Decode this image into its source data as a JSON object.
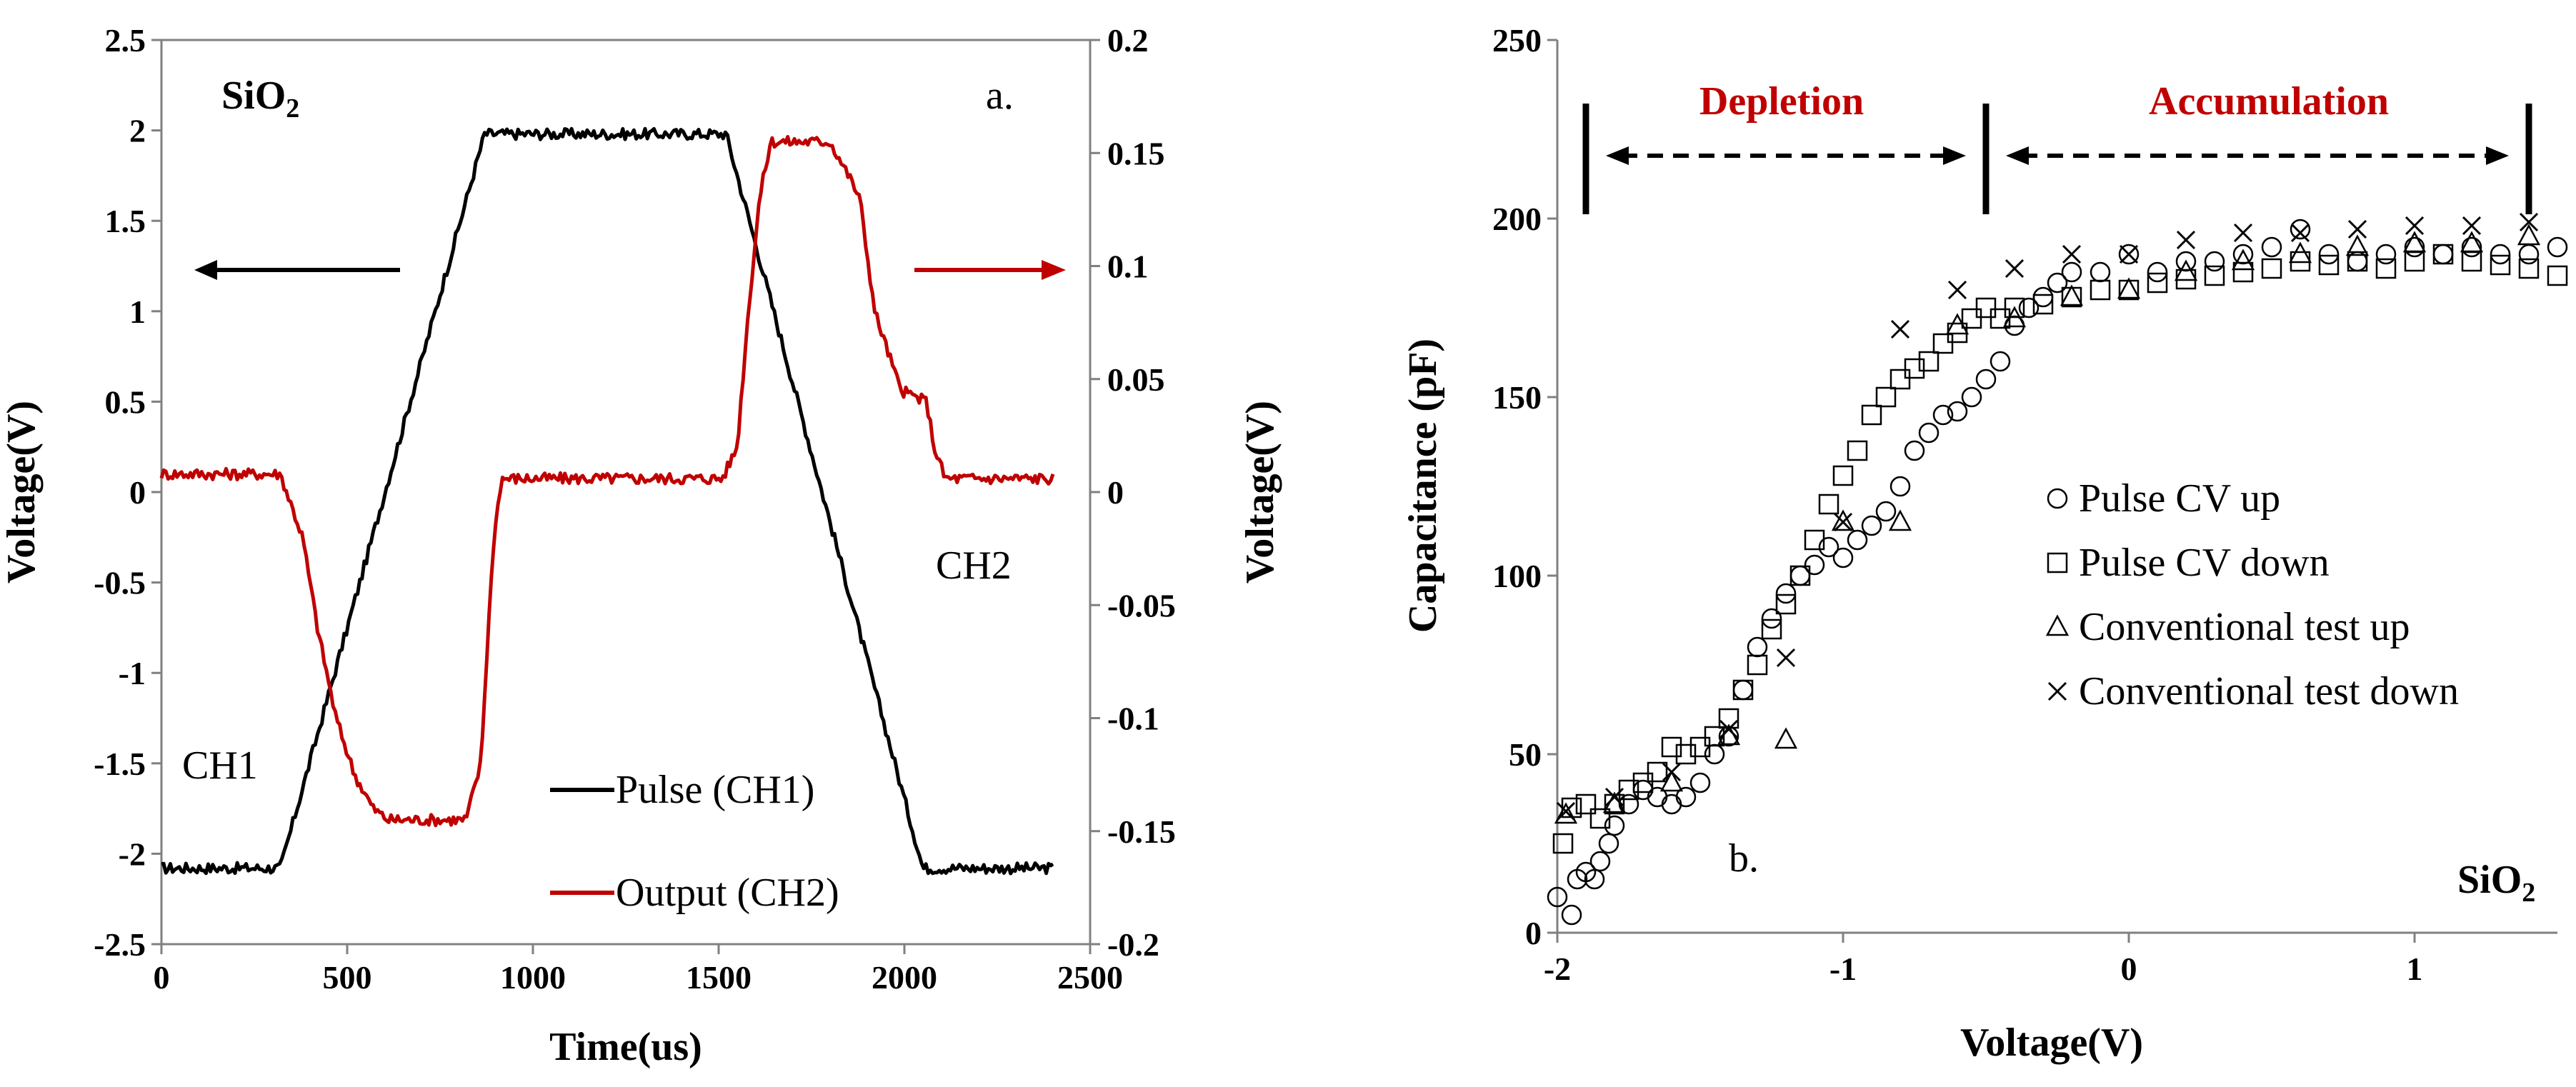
{
  "chart_data": [
    {
      "type": "line",
      "panel_label": "a.",
      "material_label": {
        "base": "SiO",
        "sub": "2"
      },
      "xlabel": "Time(us)",
      "ylabel": "Voltage(V)",
      "y2label": "Voltage(V)",
      "xlim": [
        0,
        2500
      ],
      "ylim": [
        -2.5,
        2.5
      ],
      "y2lim": [
        -0.2,
        0.2
      ],
      "x_ticks": [
        "0",
        "500",
        "1000",
        "1500",
        "2000",
        "2500"
      ],
      "y_ticks": [
        "-2.5",
        "-2",
        "-1.5",
        "-1",
        "-0.5",
        "0",
        "0.5",
        "1",
        "1.5",
        "2",
        "2.5"
      ],
      "y2_ticks": [
        "-0.2",
        "-0.15",
        "-0.1",
        "-0.05",
        "0",
        "0.05",
        "0.1",
        "0.15",
        "0.2"
      ],
      "channel_labels": [
        "CH1",
        "CH2"
      ],
      "legend": [
        "Pulse (CH1)",
        "Output (CH2)"
      ],
      "colors": {
        "ch1": "#000000",
        "ch2": "#C00000"
      },
      "series": [
        {
          "name": "Pulse (CH1)",
          "axis": "left",
          "points": [
            [
              0,
              -2.08
            ],
            [
              320,
              -2.08
            ],
            [
              870,
              1.98
            ],
            [
              1520,
              1.98
            ],
            [
              2050,
              -2.08
            ],
            [
              2400,
              -2.08
            ]
          ]
        },
        {
          "name": "Output (CH2)",
          "axis": "right",
          "points": [
            [
              0,
              0.008
            ],
            [
              320,
              0.008
            ],
            [
              380,
              -0.02
            ],
            [
              420,
              -0.06
            ],
            [
              470,
              -0.1
            ],
            [
              520,
              -0.125
            ],
            [
              570,
              -0.14
            ],
            [
              610,
              -0.145
            ],
            [
              820,
              -0.145
            ],
            [
              860,
              -0.12
            ],
            [
              880,
              -0.06
            ],
            [
              895,
              -0.02
            ],
            [
              915,
              0.006
            ],
            [
              1510,
              0.006
            ],
            [
              1550,
              0.02
            ],
            [
              1580,
              0.08
            ],
            [
              1610,
              0.13
            ],
            [
              1640,
              0.155
            ],
            [
              1800,
              0.155
            ],
            [
              1850,
              0.14
            ],
            [
              1880,
              0.13
            ],
            [
              1920,
              0.08
            ],
            [
              1960,
              0.06
            ],
            [
              1990,
              0.045
            ],
            [
              2060,
              0.04
            ],
            [
              2080,
              0.02
            ],
            [
              2110,
              0.006
            ],
            [
              2400,
              0.006
            ]
          ]
        }
      ]
    },
    {
      "type": "scatter",
      "panel_label": "b.",
      "material_label": {
        "base": "SiO",
        "sub": "2"
      },
      "xlabel": "Voltage(V)",
      "ylabel": "Capacitance (pF)",
      "xlim": [
        -2,
        1.5
      ],
      "ylim": [
        0,
        250
      ],
      "x_ticks": [
        "-2",
        "-1",
        "0",
        "1"
      ],
      "y_ticks": [
        "0",
        "50",
        "100",
        "150",
        "200",
        "250"
      ],
      "region_labels": [
        "Depletion",
        "Accumulation"
      ],
      "region_markers_x": [
        -1.9,
        -0.5,
        1.4
      ],
      "legend": [
        "Pulse CV up",
        "Pulse CV down",
        "Conventional test up",
        "Conventional test down"
      ],
      "series": [
        {
          "name": "Pulse CV up",
          "marker": "circle",
          "points": [
            [
              -2.0,
              10
            ],
            [
              -1.95,
              5
            ],
            [
              -1.93,
              15
            ],
            [
              -1.9,
              17
            ],
            [
              -1.87,
              15
            ],
            [
              -1.85,
              20
            ],
            [
              -1.82,
              25
            ],
            [
              -1.8,
              30
            ],
            [
              -1.75,
              36
            ],
            [
              -1.7,
              40
            ],
            [
              -1.65,
              38
            ],
            [
              -1.6,
              36
            ],
            [
              -1.55,
              38
            ],
            [
              -1.5,
              42
            ],
            [
              -1.45,
              50
            ],
            [
              -1.4,
              55
            ],
            [
              -1.35,
              68
            ],
            [
              -1.3,
              80
            ],
            [
              -1.25,
              88
            ],
            [
              -1.2,
              95
            ],
            [
              -1.15,
              100
            ],
            [
              -1.1,
              103
            ],
            [
              -1.05,
              108
            ],
            [
              -1.0,
              105
            ],
            [
              -0.95,
              110
            ],
            [
              -0.9,
              114
            ],
            [
              -0.85,
              118
            ],
            [
              -0.8,
              125
            ],
            [
              -0.75,
              135
            ],
            [
              -0.7,
              140
            ],
            [
              -0.65,
              145
            ],
            [
              -0.6,
              146
            ],
            [
              -0.55,
              150
            ],
            [
              -0.5,
              155
            ],
            [
              -0.45,
              160
            ],
            [
              -0.4,
              170
            ],
            [
              -0.35,
              175
            ],
            [
              -0.3,
              178
            ],
            [
              -0.25,
              182
            ],
            [
              -0.2,
              185
            ],
            [
              -0.1,
              185
            ],
            [
              0.0,
              190
            ],
            [
              0.1,
              185
            ],
            [
              0.2,
              188
            ],
            [
              0.3,
              188
            ],
            [
              0.4,
              190
            ],
            [
              0.5,
              192
            ],
            [
              0.6,
              197
            ],
            [
              0.7,
              190
            ],
            [
              0.8,
              188
            ],
            [
              0.9,
              190
            ],
            [
              1.0,
              192
            ],
            [
              1.1,
              190
            ],
            [
              1.2,
              192
            ],
            [
              1.3,
              190
            ],
            [
              1.4,
              190
            ],
            [
              1.5,
              192
            ]
          ]
        },
        {
          "name": "Pulse CV down",
          "marker": "square",
          "points": [
            [
              -1.98,
              25
            ],
            [
              -1.95,
              35
            ],
            [
              -1.9,
              36
            ],
            [
              -1.85,
              32
            ],
            [
              -1.8,
              36
            ],
            [
              -1.75,
              40
            ],
            [
              -1.7,
              42
            ],
            [
              -1.65,
              45
            ],
            [
              -1.6,
              52
            ],
            [
              -1.55,
              50
            ],
            [
              -1.5,
              52
            ],
            [
              -1.45,
              55
            ],
            [
              -1.4,
              60
            ],
            [
              -1.35,
              68
            ],
            [
              -1.3,
              75
            ],
            [
              -1.25,
              85
            ],
            [
              -1.2,
              92
            ],
            [
              -1.15,
              100
            ],
            [
              -1.1,
              110
            ],
            [
              -1.05,
              120
            ],
            [
              -1.0,
              128
            ],
            [
              -0.95,
              135
            ],
            [
              -0.9,
              145
            ],
            [
              -0.85,
              150
            ],
            [
              -0.8,
              155
            ],
            [
              -0.75,
              158
            ],
            [
              -0.7,
              160
            ],
            [
              -0.65,
              165
            ],
            [
              -0.6,
              168
            ],
            [
              -0.55,
              172
            ],
            [
              -0.5,
              175
            ],
            [
              -0.45,
              172
            ],
            [
              -0.4,
              175
            ],
            [
              -0.3,
              176
            ],
            [
              -0.2,
              178
            ],
            [
              -0.1,
              180
            ],
            [
              0.0,
              180
            ],
            [
              0.1,
              182
            ],
            [
              0.2,
              183
            ],
            [
              0.3,
              184
            ],
            [
              0.4,
              185
            ],
            [
              0.5,
              186
            ],
            [
              0.6,
              188
            ],
            [
              0.7,
              187
            ],
            [
              0.8,
              188
            ],
            [
              0.9,
              186
            ],
            [
              1.0,
              188
            ],
            [
              1.1,
              190
            ],
            [
              1.2,
              188
            ],
            [
              1.3,
              187
            ],
            [
              1.4,
              186
            ],
            [
              1.5,
              184
            ]
          ]
        },
        {
          "name": "Conventional test up",
          "marker": "triangle",
          "points": [
            [
              -1.97,
              33
            ],
            [
              -1.8,
              36
            ],
            [
              -1.6,
              42
            ],
            [
              -1.4,
              55
            ],
            [
              -1.2,
              54
            ],
            [
              -1.0,
              115
            ],
            [
              -0.8,
              115
            ],
            [
              -0.6,
              170
            ],
            [
              -0.4,
              172
            ],
            [
              -0.2,
              178
            ],
            [
              0.0,
              180
            ],
            [
              0.2,
              185
            ],
            [
              0.4,
              188
            ],
            [
              0.6,
              190
            ],
            [
              0.8,
              192
            ],
            [
              1.0,
              193
            ],
            [
              1.2,
              193
            ],
            [
              1.4,
              195
            ]
          ]
        },
        {
          "name": "Conventional test down",
          "marker": "cross",
          "points": [
            [
              -1.97,
              34
            ],
            [
              -1.8,
              38
            ],
            [
              -1.6,
              45
            ],
            [
              -1.4,
              57
            ],
            [
              -1.2,
              77
            ],
            [
              -1.0,
              115
            ],
            [
              -0.8,
              169
            ],
            [
              -0.6,
              180
            ],
            [
              -0.4,
              186
            ],
            [
              -0.2,
              190
            ],
            [
              0.0,
              190
            ],
            [
              0.2,
              194
            ],
            [
              0.4,
              196
            ],
            [
              0.6,
              196
            ],
            [
              0.8,
              197
            ],
            [
              1.0,
              198
            ],
            [
              1.2,
              198
            ],
            [
              1.4,
              199
            ]
          ]
        }
      ]
    }
  ]
}
